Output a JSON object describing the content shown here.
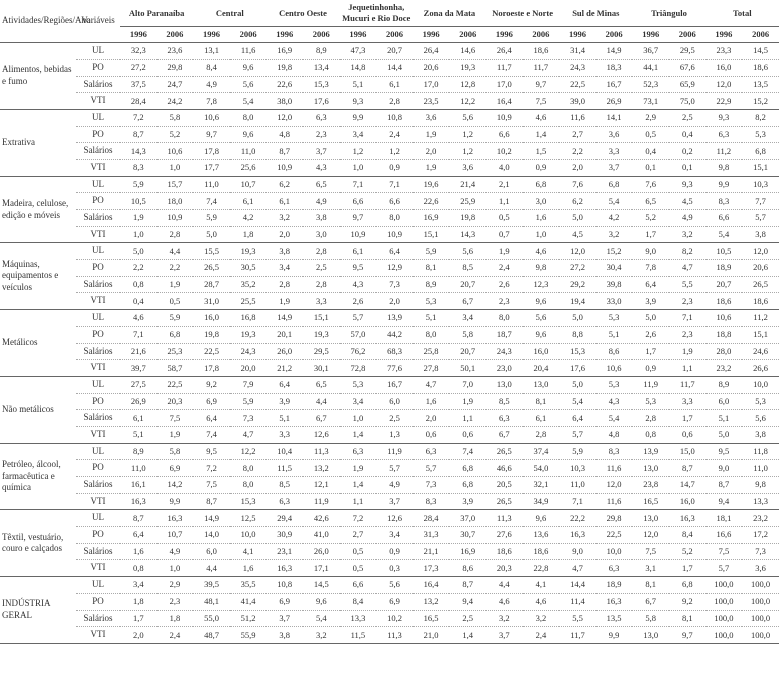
{
  "headers": {
    "activity": "Atividades/Regiões/Ano",
    "variable": "Variáveis",
    "regions": [
      "Alto Paranaíba",
      "Central",
      "Centro Oeste",
      "Jequetinhonha, Mucuri e Rio Doce",
      "Zona da Mata",
      "Noroeste e Norte",
      "Sul de Minas",
      "Triângulo",
      "Total"
    ],
    "years": [
      "1996",
      "2006"
    ]
  },
  "variables": [
    "UL",
    "PO",
    "Salários",
    "VTI"
  ],
  "activities": [
    {
      "name": "Alimentos, bebidas e fumo",
      "rows": [
        [
          "32,3",
          "23,6",
          "13,1",
          "11,6",
          "16,9",
          "8,9",
          "47,3",
          "20,7",
          "26,4",
          "14,6",
          "26,4",
          "18,6",
          "31,4",
          "14,9",
          "36,7",
          "29,5",
          "23,3",
          "14,5"
        ],
        [
          "27,2",
          "29,8",
          "8,4",
          "9,6",
          "19,8",
          "13,4",
          "14,8",
          "14,4",
          "20,6",
          "19,3",
          "11,7",
          "11,7",
          "24,3",
          "18,3",
          "44,1",
          "67,6",
          "16,0",
          "18,6"
        ],
        [
          "37,5",
          "24,7",
          "4,9",
          "5,6",
          "22,6",
          "15,3",
          "5,1",
          "6,1",
          "17,0",
          "12,8",
          "17,0",
          "9,7",
          "22,5",
          "16,7",
          "52,3",
          "65,9",
          "12,0",
          "13,5"
        ],
        [
          "28,4",
          "24,2",
          "7,8",
          "5,4",
          "38,0",
          "17,6",
          "9,3",
          "2,8",
          "23,5",
          "12,2",
          "16,4",
          "7,5",
          "39,0",
          "26,9",
          "73,1",
          "75,0",
          "22,9",
          "15,2"
        ]
      ]
    },
    {
      "name": "Extrativa",
      "rows": [
        [
          "7,2",
          "5,8",
          "10,6",
          "8,0",
          "12,0",
          "6,3",
          "9,9",
          "10,8",
          "3,6",
          "5,6",
          "10,9",
          "4,6",
          "11,6",
          "14,1",
          "2,9",
          "2,5",
          "9,3",
          "8,2"
        ],
        [
          "8,7",
          "5,2",
          "9,7",
          "9,6",
          "4,8",
          "2,3",
          "3,4",
          "2,4",
          "1,9",
          "1,2",
          "6,6",
          "1,4",
          "2,7",
          "3,6",
          "0,5",
          "0,4",
          "6,3",
          "5,3"
        ],
        [
          "14,3",
          "10,6",
          "17,8",
          "11,0",
          "8,7",
          "3,7",
          "1,2",
          "1,2",
          "2,0",
          "1,2",
          "10,2",
          "1,5",
          "2,2",
          "3,3",
          "0,4",
          "0,2",
          "11,2",
          "6,8"
        ],
        [
          "8,3",
          "1,0",
          "17,7",
          "25,6",
          "10,9",
          "4,3",
          "1,0",
          "0,9",
          "1,9",
          "3,6",
          "4,0",
          "0,9",
          "2,0",
          "3,7",
          "0,1",
          "0,1",
          "9,8",
          "15,1"
        ]
      ]
    },
    {
      "name": "Madeira, celulose, edição e móveis",
      "rows": [
        [
          "5,9",
          "15,7",
          "11,0",
          "10,7",
          "6,2",
          "6,5",
          "7,1",
          "7,1",
          "19,6",
          "21,4",
          "2,1",
          "6,8",
          "7,6",
          "6,8",
          "7,6",
          "9,3",
          "9,9",
          "10,3"
        ],
        [
          "10,5",
          "18,0",
          "7,4",
          "6,1",
          "6,1",
          "4,9",
          "6,6",
          "6,6",
          "22,6",
          "25,9",
          "1,1",
          "3,0",
          "6,2",
          "5,4",
          "6,5",
          "4,5",
          "8,3",
          "7,7"
        ],
        [
          "1,9",
          "10,9",
          "5,9",
          "4,2",
          "3,2",
          "3,8",
          "9,7",
          "8,0",
          "16,9",
          "19,8",
          "0,5",
          "1,6",
          "5,0",
          "4,2",
          "5,2",
          "4,9",
          "6,6",
          "5,7"
        ],
        [
          "1,0",
          "2,8",
          "5,0",
          "1,8",
          "2,0",
          "3,0",
          "10,9",
          "10,9",
          "15,1",
          "14,3",
          "0,7",
          "1,0",
          "4,5",
          "3,2",
          "1,7",
          "3,2",
          "5,4",
          "3,8"
        ]
      ]
    },
    {
      "name": "Máquinas, equipamentos e veículos",
      "rows": [
        [
          "5,0",
          "4,4",
          "15,5",
          "19,3",
          "3,8",
          "2,8",
          "6,1",
          "6,4",
          "5,9",
          "5,6",
          "1,9",
          "4,6",
          "12,0",
          "15,2",
          "9,0",
          "8,2",
          "10,5",
          "12,0"
        ],
        [
          "2,2",
          "2,2",
          "26,5",
          "30,5",
          "3,4",
          "2,5",
          "9,5",
          "12,9",
          "8,1",
          "8,5",
          "2,4",
          "9,8",
          "27,2",
          "30,4",
          "7,8",
          "4,7",
          "18,9",
          "20,6"
        ],
        [
          "0,8",
          "1,9",
          "28,7",
          "35,2",
          "2,8",
          "2,8",
          "4,3",
          "7,3",
          "8,9",
          "20,7",
          "2,6",
          "12,3",
          "29,2",
          "39,8",
          "6,4",
          "5,5",
          "20,7",
          "26,5"
        ],
        [
          "0,4",
          "0,5",
          "31,0",
          "25,5",
          "1,9",
          "3,3",
          "2,6",
          "2,0",
          "5,3",
          "6,7",
          "2,3",
          "9,6",
          "19,4",
          "33,0",
          "3,9",
          "2,3",
          "18,6",
          "18,6"
        ]
      ]
    },
    {
      "name": "Metálicos",
      "rows": [
        [
          "4,6",
          "5,9",
          "16,0",
          "16,8",
          "14,9",
          "15,1",
          "5,7",
          "13,9",
          "5,1",
          "3,4",
          "8,0",
          "5,6",
          "5,0",
          "5,3",
          "5,0",
          "7,1",
          "10,6",
          "11,2"
        ],
        [
          "7,1",
          "6,8",
          "19,8",
          "19,3",
          "20,1",
          "19,3",
          "57,0",
          "44,2",
          "8,0",
          "5,8",
          "18,7",
          "9,6",
          "8,8",
          "5,1",
          "2,6",
          "2,3",
          "18,8",
          "15,1"
        ],
        [
          "21,6",
          "25,3",
          "22,5",
          "24,3",
          "26,0",
          "29,5",
          "76,2",
          "68,3",
          "25,8",
          "20,7",
          "24,3",
          "16,0",
          "15,3",
          "8,6",
          "1,7",
          "1,9",
          "28,0",
          "24,6"
        ],
        [
          "39,7",
          "58,7",
          "17,8",
          "20,0",
          "21,2",
          "30,1",
          "72,8",
          "77,6",
          "27,8",
          "50,1",
          "23,0",
          "20,4",
          "17,6",
          "10,6",
          "0,9",
          "1,1",
          "23,2",
          "26,6"
        ]
      ]
    },
    {
      "name": "Não metálicos",
      "rows": [
        [
          "27,5",
          "22,5",
          "9,2",
          "7,9",
          "6,4",
          "6,5",
          "5,3",
          "16,7",
          "4,7",
          "7,0",
          "13,0",
          "13,0",
          "5,0",
          "5,3",
          "11,9",
          "11,7",
          "8,9",
          "10,0"
        ],
        [
          "26,9",
          "20,3",
          "6,9",
          "5,9",
          "3,9",
          "4,4",
          "3,4",
          "6,0",
          "1,6",
          "1,9",
          "8,5",
          "8,1",
          "5,4",
          "4,3",
          "5,3",
          "3,3",
          "6,0",
          "5,3"
        ],
        [
          "6,1",
          "7,5",
          "6,4",
          "7,3",
          "5,1",
          "6,7",
          "1,0",
          "2,5",
          "2,0",
          "1,1",
          "6,3",
          "6,1",
          "6,4",
          "5,4",
          "2,8",
          "1,7",
          "5,1",
          "5,6"
        ],
        [
          "5,1",
          "1,9",
          "7,4",
          "4,7",
          "3,3",
          "12,6",
          "1,4",
          "1,3",
          "0,6",
          "0,6",
          "6,7",
          "2,8",
          "5,7",
          "4,8",
          "0,8",
          "0,6",
          "5,0",
          "3,8"
        ]
      ]
    },
    {
      "name": "Petróleo, álcool, farmacêutica e química",
      "rows": [
        [
          "8,9",
          "5,8",
          "9,5",
          "12,2",
          "10,4",
          "11,3",
          "6,3",
          "11,9",
          "6,3",
          "7,4",
          "26,5",
          "37,4",
          "5,9",
          "8,3",
          "13,9",
          "15,0",
          "9,5",
          "11,8"
        ],
        [
          "11,0",
          "6,9",
          "7,2",
          "8,0",
          "11,5",
          "13,2",
          "1,9",
          "5,7",
          "5,7",
          "6,8",
          "46,6",
          "54,0",
          "10,3",
          "11,6",
          "13,0",
          "8,7",
          "9,0",
          "11,0"
        ],
        [
          "16,1",
          "14,2",
          "7,5",
          "8,0",
          "8,5",
          "12,1",
          "1,4",
          "4,9",
          "7,3",
          "6,8",
          "20,5",
          "32,1",
          "11,0",
          "12,0",
          "23,8",
          "14,7",
          "8,7",
          "9,8"
        ],
        [
          "16,3",
          "9,9",
          "8,7",
          "15,3",
          "6,3",
          "11,9",
          "1,1",
          "3,7",
          "8,3",
          "3,9",
          "26,5",
          "34,9",
          "7,1",
          "11,6",
          "16,5",
          "16,0",
          "9,4",
          "13,3"
        ]
      ]
    },
    {
      "name": "Têxtil, vestuário, couro e calçados",
      "rows": [
        [
          "8,7",
          "16,3",
          "14,9",
          "12,5",
          "29,4",
          "42,6",
          "7,2",
          "12,6",
          "28,4",
          "37,0",
          "11,3",
          "9,6",
          "22,2",
          "29,8",
          "13,0",
          "16,3",
          "18,1",
          "23,2"
        ],
        [
          "6,4",
          "10,7",
          "14,0",
          "10,0",
          "30,9",
          "41,0",
          "2,7",
          "3,4",
          "31,3",
          "30,7",
          "27,6",
          "13,6",
          "16,3",
          "22,5",
          "12,0",
          "8,4",
          "16,6",
          "17,2"
        ],
        [
          "1,6",
          "4,9",
          "6,0",
          "4,1",
          "23,1",
          "26,0",
          "0,5",
          "0,9",
          "21,1",
          "16,9",
          "18,6",
          "18,6",
          "9,0",
          "10,0",
          "7,5",
          "5,2",
          "7,5",
          "7,3"
        ],
        [
          "0,8",
          "1,0",
          "4,4",
          "1,6",
          "16,3",
          "17,1",
          "0,5",
          "0,3",
          "17,3",
          "8,6",
          "20,3",
          "22,8",
          "4,7",
          "6,3",
          "3,1",
          "1,7",
          "5,7",
          "3,6"
        ]
      ]
    },
    {
      "name": "INDÚSTRIA GERAL",
      "rows": [
        [
          "3,4",
          "2,9",
          "39,5",
          "35,5",
          "10,8",
          "14,5",
          "6,6",
          "5,6",
          "16,4",
          "8,7",
          "4,4",
          "4,1",
          "14,4",
          "18,9",
          "8,1",
          "6,8",
          "100,0",
          "100,0"
        ],
        [
          "1,8",
          "2,3",
          "48,1",
          "41,4",
          "6,9",
          "9,6",
          "8,4",
          "6,9",
          "13,2",
          "9,4",
          "4,6",
          "4,6",
          "11,4",
          "16,3",
          "6,7",
          "9,2",
          "100,0",
          "100,0"
        ],
        [
          "1,7",
          "1,8",
          "55,0",
          "51,2",
          "3,7",
          "5,4",
          "13,3",
          "10,2",
          "16,5",
          "2,5",
          "3,2",
          "3,2",
          "5,5",
          "13,5",
          "5,8",
          "8,1",
          "100,0",
          "100,0"
        ],
        [
          "2,0",
          "2,4",
          "48,7",
          "55,9",
          "3,8",
          "3,2",
          "11,5",
          "11,3",
          "21,0",
          "1,4",
          "3,7",
          "2,4",
          "11,7",
          "9,9",
          "13,0",
          "9,7",
          "100,0",
          "100,0"
        ]
      ]
    }
  ]
}
